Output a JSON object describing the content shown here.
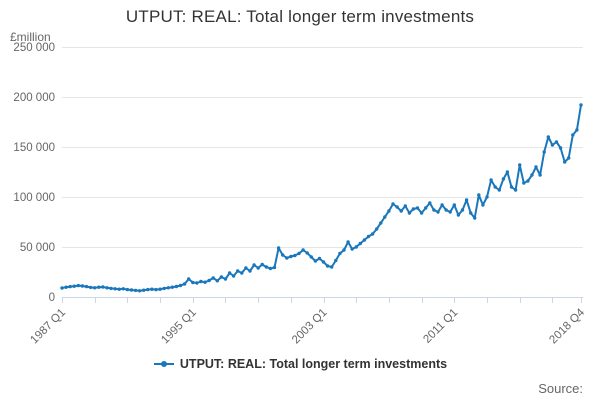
{
  "title": "UTPUT: REAL: Total longer term investments",
  "y_axis_unit_label": "£million",
  "legend": {
    "label": "UTPUT: REAL: Total longer term investments"
  },
  "source_label": "Source:",
  "colors": {
    "line": "#1b77bc",
    "grid": "#e6e6e6",
    "axis": "#ccd6eb",
    "tick_label": "#666666",
    "title_text": "#333333",
    "source_text": "#666666"
  },
  "chart_data": {
    "type": "line",
    "title": "UTPUT: REAL: Total longer term investments",
    "ylabel": "£million",
    "xlabel": "",
    "ylim": [
      0,
      250000
    ],
    "y_ticks": [
      0,
      50000,
      100000,
      150000,
      200000,
      250000
    ],
    "y_tick_labels": [
      "0",
      "50 000",
      "100 000",
      "150 000",
      "200 000",
      "250 000"
    ],
    "x_start": "1987 Q1",
    "x_end": "2018 Q4",
    "frequency": "quarterly",
    "x_tick_every": 8,
    "x_label_ticks": [
      {
        "index": 0,
        "label": "1987 Q1"
      },
      {
        "index": 32,
        "label": "1995 Q1"
      },
      {
        "index": 64,
        "label": "2003 Q1"
      },
      {
        "index": 96,
        "label": "2011 Q1"
      },
      {
        "index": 127,
        "label": "2018 Q4"
      }
    ],
    "grid": "horizontal",
    "legend_position": "bottom",
    "series": [
      {
        "name": "UTPUT: REAL: Total longer term investments",
        "color": "#1b77bc",
        "marker": "circle",
        "values": [
          9000,
          9800,
          10400,
          10800,
          11400,
          11000,
          10400,
          9600,
          9200,
          9800,
          10000,
          9200,
          8600,
          8200,
          7800,
          8200,
          7400,
          7000,
          6600,
          6200,
          6800,
          7400,
          7800,
          7400,
          7800,
          8600,
          9200,
          9800,
          10500,
          11500,
          13000,
          18000,
          14500,
          14000,
          15500,
          14800,
          16500,
          19000,
          16200,
          20000,
          18000,
          24000,
          21000,
          26000,
          24000,
          29000,
          26000,
          32000,
          29000,
          32500,
          30000,
          28500,
          29500,
          49000,
          42000,
          39000,
          40500,
          41500,
          43500,
          47000,
          44000,
          40000,
          36000,
          38500,
          35000,
          31000,
          30000,
          36500,
          43500,
          47000,
          55000,
          48000,
          50000,
          53500,
          57000,
          60500,
          63000,
          68000,
          74000,
          80000,
          86000,
          93000,
          90000,
          86000,
          91000,
          84000,
          88000,
          89000,
          84000,
          89000,
          94000,
          87000,
          85000,
          92000,
          87000,
          85000,
          92000,
          82000,
          87000,
          97000,
          84000,
          79000,
          102000,
          92000,
          100000,
          117000,
          110000,
          107000,
          118000,
          125000,
          110000,
          107000,
          132000,
          114000,
          116000,
          122000,
          130000,
          122000,
          145000,
          160000,
          152000,
          155000,
          149000,
          135000,
          139000,
          162000,
          167000,
          192000
        ]
      }
    ]
  }
}
